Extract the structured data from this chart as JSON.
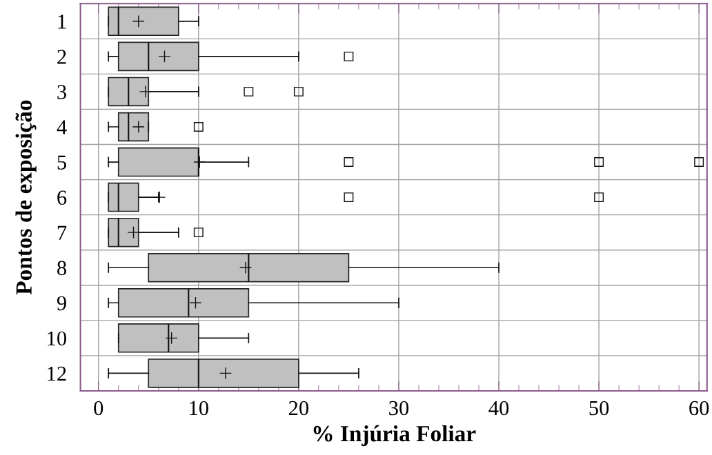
{
  "chart_data": {
    "type": "box",
    "orientation": "horizontal",
    "xlabel": "% Injúria Foliar",
    "ylabel": "Pontos de exposição",
    "categories": [
      "1",
      "2",
      "3",
      "4",
      "5",
      "6",
      "7",
      "8",
      "9",
      "10",
      "12"
    ],
    "color": "#c0c0c0",
    "boxes": [
      {
        "low": 1,
        "q1": 1,
        "median": 2,
        "q3": 8,
        "high": 10,
        "mean": 4
      },
      {
        "low": 1,
        "q1": 2,
        "median": 5,
        "q3": 10,
        "high": 20,
        "mean": 6.6,
        "outliers": [
          25
        ]
      },
      {
        "low": 1,
        "q1": 1,
        "median": 3,
        "q3": 5,
        "high": 10,
        "mean": 4.7,
        "outliers": [
          15,
          20
        ]
      },
      {
        "low": 1,
        "q1": 2,
        "median": 3,
        "q3": 5,
        "high": 5,
        "mean": 4,
        "outliers": [
          10
        ]
      },
      {
        "low": 1,
        "q1": 2,
        "median": 10,
        "q3": 10,
        "high": 15,
        "mean": 10.1,
        "outliers": [
          25,
          50,
          60
        ]
      },
      {
        "low": 1,
        "q1": 1,
        "median": 2,
        "q3": 4,
        "high": 6,
        "mean": 6.1,
        "outliers": [
          25,
          50
        ]
      },
      {
        "low": 1,
        "q1": 1,
        "median": 2,
        "q3": 4,
        "high": 8,
        "mean": 3.5,
        "outliers": [
          10
        ]
      },
      {
        "low": 1,
        "q1": 5,
        "median": 15,
        "q3": 25,
        "high": 40,
        "mean": 14.7
      },
      {
        "low": 1,
        "q1": 2,
        "median": 9,
        "q3": 15,
        "high": 30,
        "mean": 9.7
      },
      {
        "low": 2,
        "q1": 2,
        "median": 7,
        "q3": 10,
        "high": 15,
        "mean": 7.3
      },
      {
        "low": 1,
        "q1": 5,
        "median": 10,
        "q3": 20,
        "high": 26,
        "mean": 12.7
      }
    ],
    "xlim": [
      -1.8,
      60.8
    ],
    "xticks": [
      0,
      10,
      20,
      30,
      40,
      50,
      60
    ],
    "grid": true,
    "marker": "square"
  }
}
